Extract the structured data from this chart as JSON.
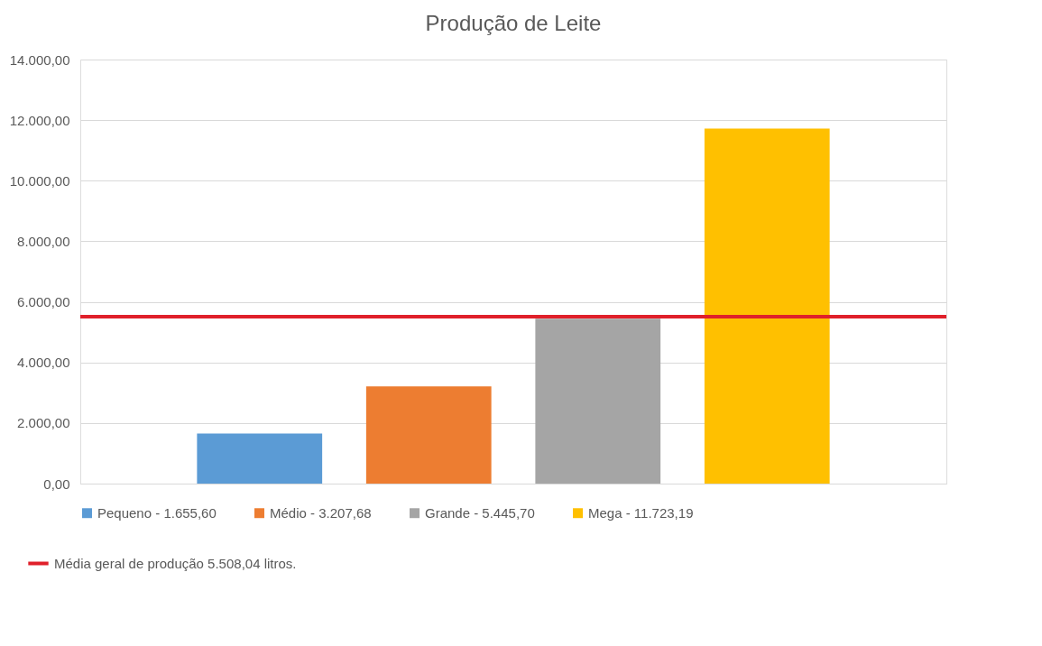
{
  "chart_data": {
    "type": "bar",
    "title": "Produção de Leite",
    "categories": [
      null
    ],
    "series": [
      {
        "name": "Pequeno - 1.655,60",
        "color": "#5b9bd5",
        "values": [
          1655.6
        ]
      },
      {
        "name": "Médio - 3.207,68",
        "color": "#ed7d31",
        "values": [
          3207.68
        ]
      },
      {
        "name": "Grande - 5.445,70",
        "color": "#a5a5a5",
        "values": [
          5445.7
        ]
      },
      {
        "name": "Mega - 11.723,19",
        "color": "#ffc000",
        "values": [
          11723.19
        ]
      }
    ],
    "ylim": [
      0,
      14000
    ],
    "yticks": [
      {
        "value": 0,
        "label": "0,00"
      },
      {
        "value": 2000,
        "label": "2.000,00"
      },
      {
        "value": 4000,
        "label": "4.000,00"
      },
      {
        "value": 6000,
        "label": "6.000,00"
      },
      {
        "value": 8000,
        "label": "8.000,00"
      },
      {
        "value": 10000,
        "label": "10.000,00"
      },
      {
        "value": 12000,
        "label": "12.000,00"
      },
      {
        "value": 14000,
        "label": "14.000,00"
      }
    ],
    "ref_lines": [
      {
        "axis": "y",
        "value": 5508.04,
        "label": "Média geral de produção 5.508,04 litros.",
        "color": "#e0202a"
      }
    ],
    "grid": "y",
    "legend": "bottom",
    "tick_labels": "y"
  }
}
